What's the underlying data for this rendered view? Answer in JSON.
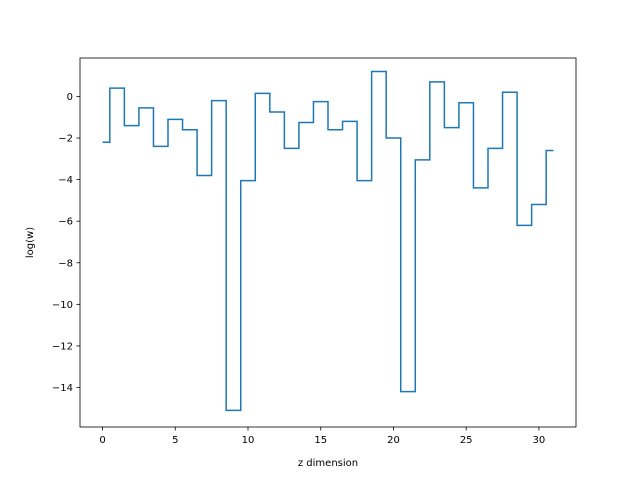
{
  "chart_data": {
    "type": "line",
    "drawstyle": "steps-mid",
    "title": "",
    "xlabel": "z dimension",
    "ylabel": "log(w)",
    "xlim": [
      -1.55,
      32.55
    ],
    "ylim": [
      -15.9,
      1.85
    ],
    "xticks": [
      0,
      5,
      10,
      15,
      20,
      25,
      30
    ],
    "yticks": [
      0,
      -2,
      -4,
      -6,
      -8,
      -10,
      -12,
      -14
    ],
    "grid": false,
    "legend": "none",
    "series": [
      {
        "color": "#1f77b4",
        "x": [
          0,
          1,
          2,
          3,
          4,
          5,
          6,
          7,
          8,
          9,
          10,
          11,
          12,
          13,
          14,
          15,
          16,
          17,
          18,
          19,
          20,
          21,
          22,
          23,
          24,
          25,
          26,
          27,
          28,
          29,
          30,
          31
        ],
        "y": [
          -2.2,
          0.4,
          -1.4,
          -0.55,
          -2.4,
          -1.1,
          -1.6,
          -3.8,
          -0.2,
          -15.1,
          -4.05,
          0.15,
          -0.75,
          -2.5,
          -1.25,
          -0.25,
          -1.6,
          -1.2,
          -4.05,
          1.2,
          -2.0,
          -14.2,
          -3.05,
          0.7,
          -1.5,
          -0.3,
          -4.4,
          -2.5,
          0.2,
          -6.2,
          -5.2,
          -2.6
        ]
      }
    ]
  }
}
